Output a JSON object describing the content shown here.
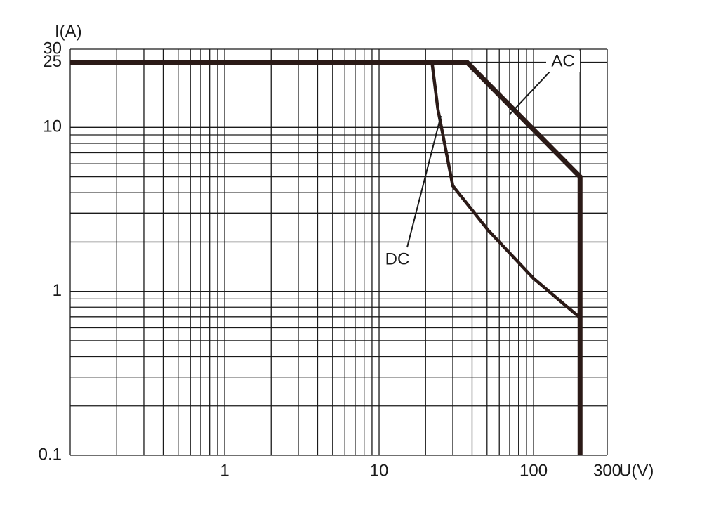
{
  "chart_data": {
    "type": "line",
    "x_label": "U(V)",
    "y_label": "I(A)",
    "xscale": "log",
    "yscale": "log",
    "xlim": [
      0.1,
      300
    ],
    "ylim": [
      0.1,
      30
    ],
    "xticks": [
      1,
      10,
      100,
      300
    ],
    "yticks": [
      0.1,
      1,
      10,
      25,
      30
    ],
    "xgrid": [
      0.1,
      0.2,
      0.3,
      0.4,
      0.5,
      0.6,
      0.7,
      0.8,
      0.9,
      1,
      2,
      3,
      4,
      5,
      6,
      7,
      8,
      9,
      10,
      20,
      30,
      40,
      50,
      60,
      70,
      80,
      90,
      100,
      200,
      300
    ],
    "ygrid": [
      0.1,
      0.2,
      0.3,
      0.4,
      0.5,
      0.6,
      0.7,
      0.8,
      0.9,
      1,
      2,
      3,
      4,
      5,
      6,
      7,
      8,
      9,
      10,
      25,
      30
    ],
    "grid": true,
    "series": [
      {
        "name": "AC",
        "color": "#2b1a17",
        "x": [
          0.1,
          37,
          200,
          200
        ],
        "values": [
          25,
          25,
          5,
          0.1
        ]
      },
      {
        "name": "DC",
        "color": "#2b1a17",
        "x": [
          0.1,
          22,
          24,
          30,
          51,
          100,
          200
        ],
        "values": [
          25,
          25,
          13,
          4.4,
          2.35,
          1.2,
          0.69
        ]
      }
    ]
  }
}
